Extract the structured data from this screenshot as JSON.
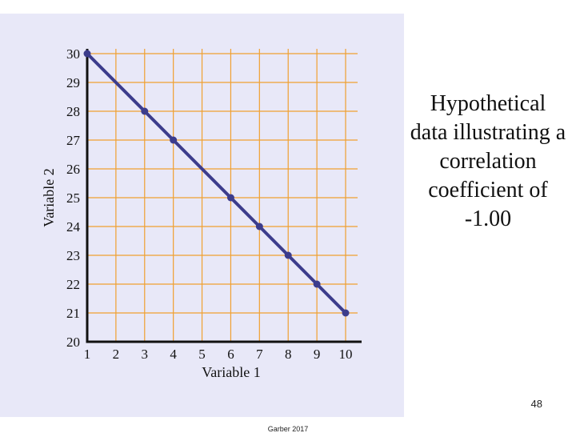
{
  "chart_data": {
    "type": "line",
    "title": "",
    "xlabel": "Variable 1",
    "ylabel": "Variable 2",
    "x": [
      1,
      3,
      4,
      6,
      7,
      8,
      9,
      10
    ],
    "series": [
      {
        "values": [
          30,
          28,
          27,
          25,
          24,
          23,
          22,
          21
        ]
      }
    ],
    "xlim": [
      1,
      10
    ],
    "ylim": [
      20,
      30
    ],
    "x_ticks": [
      "1",
      "2",
      "3",
      "4",
      "5",
      "6",
      "7",
      "8",
      "9",
      "10"
    ],
    "y_ticks": [
      "20",
      "21",
      "22",
      "23",
      "24",
      "25",
      "26",
      "27",
      "28",
      "29",
      "30"
    ],
    "grid": true,
    "line_color": "#3c3c8c",
    "grid_color": "#f0a030",
    "background_color": "#e8e8f8"
  },
  "caption": "Hypothetical data illustrating a correlation coefficient of -1.00",
  "page_number": "48",
  "footer": "Garber 2017"
}
